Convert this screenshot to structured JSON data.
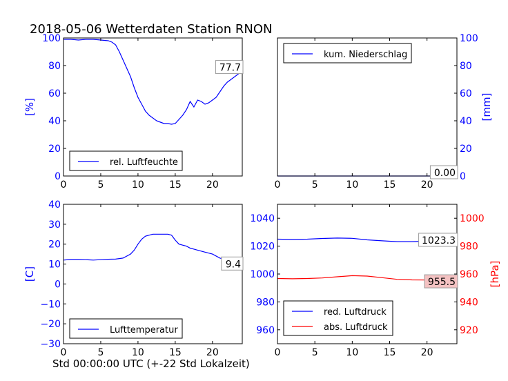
{
  "title": "2018-05-06 Wetterdaten Station RNON",
  "xlabel": "Std 00:00:00 UTC (+-22 Std Lokalzeit)",
  "colors": {
    "blue": "#0000ff",
    "red": "#ff0000",
    "value_box_red": "#f4c2c2"
  },
  "chart_data": [
    {
      "type": "line",
      "ylabel": "[%]",
      "xlim": [
        0,
        24
      ],
      "ylim": [
        0,
        100
      ],
      "xticks": [
        "0",
        "5",
        "10",
        "15",
        "20"
      ],
      "yticks": [
        "0",
        "20",
        "40",
        "60",
        "80",
        "100"
      ],
      "legend_position": "lower-left",
      "current_value": "77.7",
      "series": [
        {
          "name": "rel. Luftfeuchte",
          "color": "#0000ff",
          "x": [
            0,
            1,
            2,
            3,
            4,
            5,
            6,
            6.5,
            7,
            7.5,
            8,
            8.5,
            9,
            9.5,
            10,
            10.5,
            11,
            11.5,
            12,
            12.5,
            13,
            13.5,
            14,
            14.5,
            15,
            15.5,
            16,
            16.5,
            17,
            17.5,
            18,
            18.5,
            19,
            19.5,
            20,
            20.5,
            21,
            21.5,
            22,
            22.5,
            23,
            23.5,
            24
          ],
          "values": [
            99,
            99,
            98.5,
            99,
            99,
            98.5,
            98,
            97,
            95,
            90,
            84,
            78,
            72,
            64,
            57,
            52,
            47,
            44,
            42,
            40,
            39,
            38,
            38,
            37.5,
            38,
            41,
            44,
            48,
            54,
            50,
            55,
            54,
            52,
            53,
            55,
            57,
            61,
            65,
            68,
            70,
            72,
            74,
            77.7
          ]
        }
      ]
    },
    {
      "type": "line",
      "ylabel": "[mm]",
      "xlim": [
        0,
        24
      ],
      "ylim": [
        0,
        100
      ],
      "xticks": [
        "0",
        "5",
        "10",
        "15",
        "20"
      ],
      "yticks": [
        "0",
        "20",
        "40",
        "60",
        "80",
        "100"
      ],
      "legend_position": "upper-left",
      "current_value": "0.00",
      "series": [
        {
          "name": "kum. Niederschlag",
          "color": "#0000ff",
          "x": [
            0,
            24
          ],
          "values": [
            0,
            0
          ]
        }
      ]
    },
    {
      "type": "line",
      "ylabel": "[C]",
      "xlim": [
        0,
        24
      ],
      "ylim": [
        -30,
        40
      ],
      "xticks": [
        "0",
        "5",
        "10",
        "15",
        "20"
      ],
      "yticks": [
        "−30",
        "−20",
        "−10",
        "0",
        "10",
        "20",
        "30",
        "40"
      ],
      "legend_position": "lower-left",
      "current_value": "9.4",
      "series": [
        {
          "name": "Lufttemperatur",
          "color": "#0000ff",
          "x": [
            0,
            1,
            2,
            3,
            4,
            5,
            6,
            7,
            8,
            9,
            9.5,
            10,
            10.5,
            11,
            11.5,
            12,
            12.5,
            13,
            13.5,
            14,
            14.5,
            15,
            15.5,
            16,
            16.5,
            17,
            17.5,
            18,
            19,
            20,
            21,
            22,
            23,
            24
          ],
          "values": [
            12,
            12.3,
            12.3,
            12.2,
            12,
            12.2,
            12.4,
            12.5,
            13,
            15,
            17,
            20,
            22.5,
            24,
            24.5,
            25,
            25,
            25,
            25,
            25,
            24.5,
            22,
            20,
            19.5,
            19,
            18,
            17.5,
            17,
            16,
            15,
            13,
            12,
            11,
            9.4
          ]
        }
      ]
    },
    {
      "type": "line",
      "ylabel": "",
      "y2label": "[hPa]",
      "xlim": [
        0,
        24
      ],
      "ylim": [
        950,
        1050
      ],
      "y2lim": [
        910,
        1010
      ],
      "xticks": [
        "0",
        "5",
        "10",
        "15",
        "20"
      ],
      "yticks": [
        "960",
        "980",
        "1000",
        "1020",
        "1040"
      ],
      "y2ticks": [
        "920",
        "940",
        "960",
        "980",
        "1000"
      ],
      "legend_position": "lower-left",
      "current_value": "1023.3",
      "current_value_2": "955.5",
      "series": [
        {
          "name": "red. Luftdruck",
          "color": "#0000ff",
          "axis": "left",
          "x": [
            0,
            2,
            4,
            6,
            8,
            10,
            12,
            14,
            16,
            18,
            20,
            22,
            24
          ],
          "values": [
            1025,
            1024.8,
            1025,
            1025.5,
            1025.8,
            1025.6,
            1024.5,
            1023.8,
            1023.2,
            1023.2,
            1023.5,
            1023.2,
            1023.3
          ]
        },
        {
          "name": "abs. Luftdruck",
          "color": "#ff0000",
          "axis": "right",
          "x": [
            0,
            2,
            4,
            6,
            8,
            10,
            12,
            14,
            16,
            18,
            20,
            22,
            24
          ],
          "values": [
            956.8,
            956.6,
            956.8,
            957.2,
            958,
            958.8,
            958.5,
            957.4,
            956.2,
            955.8,
            955.7,
            955.6,
            955.5
          ]
        }
      ]
    }
  ]
}
